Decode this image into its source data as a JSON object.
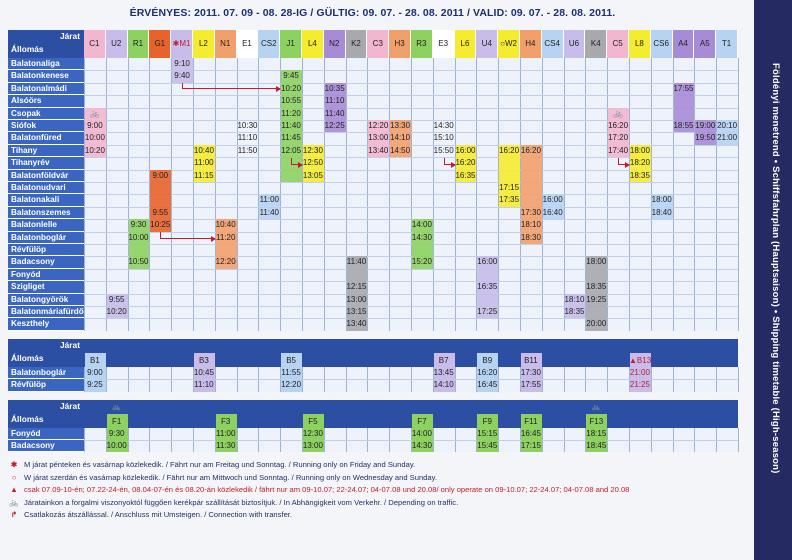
{
  "title": {
    "text": "ÉRVÉNYES: 2011. 07. 09 - 08. 28-IG / GÜLTIG: 09. 07. - 28. 08. 2011 / VALID: 09. 07. - 28. 08. 2011."
  },
  "side_title": "Földényi menetrend • Schiffsfahrplan (Hauptsaison) • Shipping timetable (High-season)",
  "colors": {
    "header_navy": "#2d4fa3",
    "station_blue": "#3a66c2",
    "grid_bg": "#eef2fa",
    "blue": "#7da6de",
    "lilac": "#c7bcea",
    "pink": "#f2b6cf",
    "orange_red": "#e8632b",
    "yellow": "#f5ec2f",
    "green": "#8dd161",
    "mint": "#a8e6c6",
    "purple": "#a78bd6",
    "salmon": "#f2a06b",
    "light_blue": "#b7d3f2",
    "peach": "#f6c199",
    "teal": "#9cd7d9",
    "grey": "#a7a9ad",
    "light_green": "#c8e6a0",
    "red": "#c21d2c"
  },
  "section1": {
    "header_labels": [
      "Járat",
      "Állomás"
    ],
    "columns": [
      {
        "name": "C1",
        "color": "#f2b6cf"
      },
      {
        "name": "U2",
        "color": "#c7bcea"
      },
      {
        "name": "R1",
        "color": "#8dd161"
      },
      {
        "name": "G1",
        "color": "#e8632b"
      },
      {
        "name": "✱M1",
        "color": "#c7bcea"
      },
      {
        "name": "L2",
        "color": "#f5ec2f"
      },
      {
        "name": "N1",
        "color": "#f2a06b"
      },
      {
        "name": "E1",
        "color": "#ffffff"
      },
      {
        "name": "CS2",
        "color": "#b7d3f2"
      },
      {
        "name": "J1",
        "color": "#8dd161"
      },
      {
        "name": "L4",
        "color": "#f5ec2f"
      },
      {
        "name": "N2",
        "color": "#a78bd6"
      },
      {
        "name": "K2",
        "color": "#a7a9ad"
      },
      {
        "name": "C3",
        "color": "#f2b6cf"
      },
      {
        "name": "H3",
        "color": "#f2a06b"
      },
      {
        "name": "R3",
        "color": "#8dd161"
      },
      {
        "name": "E3",
        "color": "#ffffff"
      },
      {
        "name": "L6",
        "color": "#f5ec2f"
      },
      {
        "name": "U4",
        "color": "#c7bcea"
      },
      {
        "name": "○W2",
        "color": "#f5ec2f"
      },
      {
        "name": "H4",
        "color": "#f2a06b"
      },
      {
        "name": "CS4",
        "color": "#b7d3f2"
      },
      {
        "name": "U6",
        "color": "#c7bcea"
      },
      {
        "name": "K4",
        "color": "#a7a9ad"
      },
      {
        "name": "C5",
        "color": "#f2b6cf"
      },
      {
        "name": "L8",
        "color": "#f5ec2f"
      },
      {
        "name": "CS6",
        "color": "#b7d3f2"
      },
      {
        "name": "A4",
        "color": "#a78bd6"
      },
      {
        "name": "A5",
        "color": "#a78bd6"
      },
      {
        "name": "T1",
        "color": "#b7d3f2"
      }
    ],
    "stations": [
      "Balatonaliga",
      "Balatonkenese",
      "Balatonalmádi",
      "Alsóörs",
      "Csopak",
      "Siófok",
      "Balatonfüred",
      "Tihany",
      "Tihanyrév",
      "Balatonföldvár",
      "Balatonudvari",
      "Balatonakali",
      "Balatonszemes",
      "Balatonlelle",
      "Balatonboglár",
      "Révfülöp",
      "Badacsony",
      "Fonyód",
      "Szigliget",
      "Balatongyörök",
      "Balatonmáriafürdő",
      "Keszthely"
    ],
    "times": [
      {
        "row": 0,
        "col": 4,
        "text": "9:10"
      },
      {
        "row": 1,
        "col": 4,
        "text": "9:40"
      },
      {
        "row": 1,
        "col": 9,
        "text": "9:45"
      },
      {
        "row": 2,
        "col": 9,
        "text": "10:20"
      },
      {
        "row": 2,
        "col": 11,
        "text": "10:35"
      },
      {
        "row": 2,
        "col": 27,
        "text": "17:55"
      },
      {
        "row": 3,
        "col": 9,
        "text": "10:55"
      },
      {
        "row": 3,
        "col": 11,
        "text": "11:10"
      },
      {
        "row": 4,
        "col": 0,
        "text": "🚲"
      },
      {
        "row": 4,
        "col": 9,
        "text": "11:20"
      },
      {
        "row": 4,
        "col": 11,
        "text": "11:40"
      },
      {
        "row": 4,
        "col": 24,
        "text": "🚲"
      },
      {
        "row": 5,
        "col": 0,
        "text": "9:00"
      },
      {
        "row": 5,
        "col": 7,
        "text": "10:30"
      },
      {
        "row": 5,
        "col": 9,
        "text": "11:40"
      },
      {
        "row": 5,
        "col": 11,
        "text": "12:25"
      },
      {
        "row": 5,
        "col": 13,
        "text": "12:20"
      },
      {
        "row": 5,
        "col": 14,
        "text": "13:30"
      },
      {
        "row": 5,
        "col": 16,
        "text": "14:30"
      },
      {
        "row": 5,
        "col": 24,
        "text": "16:20"
      },
      {
        "row": 5,
        "col": 27,
        "text": "18:55"
      },
      {
        "row": 5,
        "col": 28,
        "text": "19:00"
      },
      {
        "row": 5,
        "col": 29,
        "text": "20:10"
      },
      {
        "row": 6,
        "col": 0,
        "text": "10:00"
      },
      {
        "row": 6,
        "col": 7,
        "text": "11:10"
      },
      {
        "row": 6,
        "col": 9,
        "text": "11:45"
      },
      {
        "row": 6,
        "col": 13,
        "text": "13:00"
      },
      {
        "row": 6,
        "col": 14,
        "text": "14:10"
      },
      {
        "row": 6,
        "col": 16,
        "text": "15:10"
      },
      {
        "row": 6,
        "col": 24,
        "text": "17:20"
      },
      {
        "row": 6,
        "col": 28,
        "text": "19:50"
      },
      {
        "row": 6,
        "col": 29,
        "text": "21:00"
      },
      {
        "row": 7,
        "col": 0,
        "text": "10:20"
      },
      {
        "row": 7,
        "col": 5,
        "text": "10:40"
      },
      {
        "row": 7,
        "col": 7,
        "text": "11:50"
      },
      {
        "row": 7,
        "col": 9,
        "text": "12:05"
      },
      {
        "row": 7,
        "col": 10,
        "text": "12:30"
      },
      {
        "row": 7,
        "col": 13,
        "text": "13:40"
      },
      {
        "row": 7,
        "col": 14,
        "text": "14:50"
      },
      {
        "row": 7,
        "col": 16,
        "text": "15:50"
      },
      {
        "row": 7,
        "col": 17,
        "text": "16:00"
      },
      {
        "row": 7,
        "col": 19,
        "text": "16:20"
      },
      {
        "row": 7,
        "col": 20,
        "text": "16:20"
      },
      {
        "row": 7,
        "col": 24,
        "text": "17:40"
      },
      {
        "row": 7,
        "col": 25,
        "text": "18:00"
      },
      {
        "row": 8,
        "col": 5,
        "text": "11:00"
      },
      {
        "row": 8,
        "col": 10,
        "text": "12:50"
      },
      {
        "row": 8,
        "col": 17,
        "text": "16:20"
      },
      {
        "row": 8,
        "col": 25,
        "text": "18:20"
      },
      {
        "row": 9,
        "col": 3,
        "text": "9:00"
      },
      {
        "row": 9,
        "col": 5,
        "text": "11:15"
      },
      {
        "row": 9,
        "col": 10,
        "text": "13:05"
      },
      {
        "row": 9,
        "col": 17,
        "text": "16:35"
      },
      {
        "row": 9,
        "col": 25,
        "text": "18:35"
      },
      {
        "row": 10,
        "col": 19,
        "text": "17:15"
      },
      {
        "row": 11,
        "col": 8,
        "text": "11:00"
      },
      {
        "row": 11,
        "col": 19,
        "text": "17:35"
      },
      {
        "row": 11,
        "col": 21,
        "text": "16:00"
      },
      {
        "row": 11,
        "col": 26,
        "text": "18:00"
      },
      {
        "row": 12,
        "col": 3,
        "text": "9:55"
      },
      {
        "row": 12,
        "col": 8,
        "text": "11:40"
      },
      {
        "row": 12,
        "col": 20,
        "text": "17:30"
      },
      {
        "row": 12,
        "col": 21,
        "text": "16:40"
      },
      {
        "row": 12,
        "col": 26,
        "text": "18:40"
      },
      {
        "row": 13,
        "col": 2,
        "text": "9:30"
      },
      {
        "row": 13,
        "col": 3,
        "text": "10:25"
      },
      {
        "row": 13,
        "col": 6,
        "text": "10:40"
      },
      {
        "row": 13,
        "col": 15,
        "text": "14:00"
      },
      {
        "row": 13,
        "col": 20,
        "text": "18:10"
      },
      {
        "row": 14,
        "col": 2,
        "text": "10:00"
      },
      {
        "row": 14,
        "col": 6,
        "text": "11:20"
      },
      {
        "row": 14,
        "col": 15,
        "text": "14:30"
      },
      {
        "row": 14,
        "col": 20,
        "text": "18:30"
      },
      {
        "row": 16,
        "col": 2,
        "text": "10:50"
      },
      {
        "row": 16,
        "col": 6,
        "text": "12:20"
      },
      {
        "row": 16,
        "col": 12,
        "text": "11:40"
      },
      {
        "row": 16,
        "col": 15,
        "text": "15:20"
      },
      {
        "row": 16,
        "col": 18,
        "text": "16:00"
      },
      {
        "row": 16,
        "col": 23,
        "text": "18:00"
      },
      {
        "row": 18,
        "col": 12,
        "text": "12:15"
      },
      {
        "row": 18,
        "col": 18,
        "text": "16:35"
      },
      {
        "row": 18,
        "col": 23,
        "text": "18:35"
      },
      {
        "row": 19,
        "col": 1,
        "text": "9:55"
      },
      {
        "row": 19,
        "col": 12,
        "text": "13:00"
      },
      {
        "row": 19,
        "col": 22,
        "text": "18:10"
      },
      {
        "row": 19,
        "col": 23,
        "text": "19:25"
      },
      {
        "row": 20,
        "col": 1,
        "text": "10:20"
      },
      {
        "row": 20,
        "col": 12,
        "text": "13:15"
      },
      {
        "row": 20,
        "col": 18,
        "text": "17:25"
      },
      {
        "row": 20,
        "col": 22,
        "text": "18:35"
      },
      {
        "row": 21,
        "col": 12,
        "text": "13:40"
      },
      {
        "row": 21,
        "col": 23,
        "text": "20:00"
      }
    ],
    "bars": [
      {
        "col": 4,
        "from": 0,
        "to": 1,
        "color": "#c7bcea"
      },
      {
        "col": 9,
        "from": 1,
        "to": 9,
        "color": "#8dd161"
      },
      {
        "col": 11,
        "from": 2,
        "to": 5,
        "color": "#a78bd6"
      },
      {
        "col": 27,
        "from": 2,
        "to": 5,
        "color": "#a78bd6"
      },
      {
        "col": 0,
        "from": 4,
        "to": 7,
        "color": "#f2b6cf"
      },
      {
        "col": 24,
        "from": 4,
        "to": 7,
        "color": "#f2b6cf"
      },
      {
        "col": 13,
        "from": 5,
        "to": 7,
        "color": "#f2b6cf"
      },
      {
        "col": 14,
        "from": 5,
        "to": 7,
        "color": "#f2a06b"
      },
      {
        "col": 28,
        "from": 5,
        "to": 6,
        "color": "#a78bd6"
      },
      {
        "col": 29,
        "from": 5,
        "to": 6,
        "color": "#b7d3f2"
      },
      {
        "col": 5,
        "from": 7,
        "to": 9,
        "color": "#f5ec2f"
      },
      {
        "col": 10,
        "from": 7,
        "to": 9,
        "color": "#f5ec2f"
      },
      {
        "col": 17,
        "from": 7,
        "to": 9,
        "color": "#f5ec2f"
      },
      {
        "col": 19,
        "from": 7,
        "to": 11,
        "color": "#f5ec2f"
      },
      {
        "col": 20,
        "from": 7,
        "to": 14,
        "color": "#f2a06b"
      },
      {
        "col": 25,
        "from": 7,
        "to": 9,
        "color": "#f5ec2f"
      },
      {
        "col": 3,
        "from": 9,
        "to": 13,
        "color": "#e8632b"
      },
      {
        "col": 8,
        "from": 11,
        "to": 12,
        "color": "#b7d3f2"
      },
      {
        "col": 21,
        "from": 11,
        "to": 12,
        "color": "#b7d3f2"
      },
      {
        "col": 26,
        "from": 11,
        "to": 12,
        "color": "#b7d3f2"
      },
      {
        "col": 2,
        "from": 13,
        "to": 16,
        "color": "#8dd161"
      },
      {
        "col": 6,
        "from": 13,
        "to": 16,
        "color": "#f2a06b"
      },
      {
        "col": 15,
        "from": 13,
        "to": 16,
        "color": "#8dd161"
      },
      {
        "col": 12,
        "from": 16,
        "to": 21,
        "color": "#a7a9ad"
      },
      {
        "col": 18,
        "from": 16,
        "to": 20,
        "color": "#c7bcea"
      },
      {
        "col": 23,
        "from": 16,
        "to": 21,
        "color": "#a7a9ad"
      },
      {
        "col": 1,
        "from": 19,
        "to": 20,
        "color": "#c7bcea"
      },
      {
        "col": 22,
        "from": 19,
        "to": 20,
        "color": "#c7bcea"
      }
    ]
  },
  "section2": {
    "header_labels": [
      "Járat",
      "Állomás"
    ],
    "stations": [
      "Balatonboglár",
      "Révfülöp"
    ],
    "columns": [
      {
        "col": 0,
        "name": "B1",
        "color": "#b7d3f2",
        "times": [
          "9:00",
          "9:25"
        ]
      },
      {
        "col": 5,
        "name": "B3",
        "color": "#c7bcea",
        "times": [
          "10:45",
          "11:10"
        ]
      },
      {
        "col": 9,
        "name": "B5",
        "color": "#b7d3f2",
        "times": [
          "11:55",
          "12:20"
        ]
      },
      {
        "col": 16,
        "name": "B7",
        "color": "#c7bcea",
        "times": [
          "13:45",
          "14:10"
        ]
      },
      {
        "col": 18,
        "name": "B9",
        "color": "#b7d3f2",
        "times": [
          "16:20",
          "16:45"
        ]
      },
      {
        "col": 20,
        "name": "B11",
        "color": "#c7bcea",
        "times": [
          "17:30",
          "17:55"
        ]
      },
      {
        "col": 25,
        "name": "▲B13",
        "color": "#c7bcea",
        "times": [
          "21:00",
          "21:25"
        ]
      }
    ]
  },
  "section3": {
    "header_labels": [
      "Járat",
      "Állomás"
    ],
    "stations": [
      "Fonyód",
      "Badacsony"
    ],
    "columns": [
      {
        "col": 1,
        "name": "F1",
        "color": "#8dd161",
        "times": [
          "9:30",
          "10:00"
        ]
      },
      {
        "col": 6,
        "name": "F3",
        "color": "#8dd161",
        "times": [
          "11:00",
          "11:30"
        ]
      },
      {
        "col": 10,
        "name": "F5",
        "color": "#8dd161",
        "times": [
          "12:30",
          "13:00"
        ]
      },
      {
        "col": 15,
        "name": "F7",
        "color": "#8dd161",
        "times": [
          "14:00",
          "14:30"
        ]
      },
      {
        "col": 18,
        "name": "F9",
        "color": "#8dd161",
        "times": [
          "15:15",
          "15:45"
        ]
      },
      {
        "col": 20,
        "name": "F11",
        "color": "#8dd161",
        "times": [
          "16:45",
          "17:15"
        ]
      },
      {
        "col": 23,
        "name": "F13",
        "color": "#8dd161",
        "times": [
          "18:15",
          "18:45"
        ]
      }
    ]
  },
  "legend": [
    {
      "icon": "✱",
      "icon_name": "asterisk-icon",
      "text": "M járat pénteken és vasárnap közlekedik. / Fährt nur am Freitag und Sonntag. / Running only on Friday and Sunday.",
      "red": false
    },
    {
      "icon": "○",
      "icon_name": "circle-icon",
      "text": "W járat szerdán és vasárnap közlekedik. / Fährt nur am Mittwoch und Sonntag. / Running only on Wednesday and Sunday.",
      "red": false
    },
    {
      "icon": "▲",
      "icon_name": "triangle-icon",
      "text": "csak 07.09-10-én; 07.22-24-én, 08.04-07-én és 08.20-án közlekedik / fährt nur am 09-10.07; 22-24.07; 04-07.08 und 20.08/ only operate on 09-10.07; 22-24.07; 04-07.08 and 20.08",
      "red": true
    },
    {
      "icon": "🚲",
      "icon_name": "bicycle-icon",
      "text": "Járatainkon a forgalmi viszonyoktól függően kerékpár szállítását biztosítjuk. / In Abhängigkeit vom Verkehr. / Depending on traffic.",
      "red": false
    },
    {
      "icon": "↱",
      "icon_name": "transfer-arrow-icon",
      "text": "Csatlakozás átszállással. / Anschluss mit Umsteigen. / Connection with transfer.",
      "red": false
    }
  ]
}
